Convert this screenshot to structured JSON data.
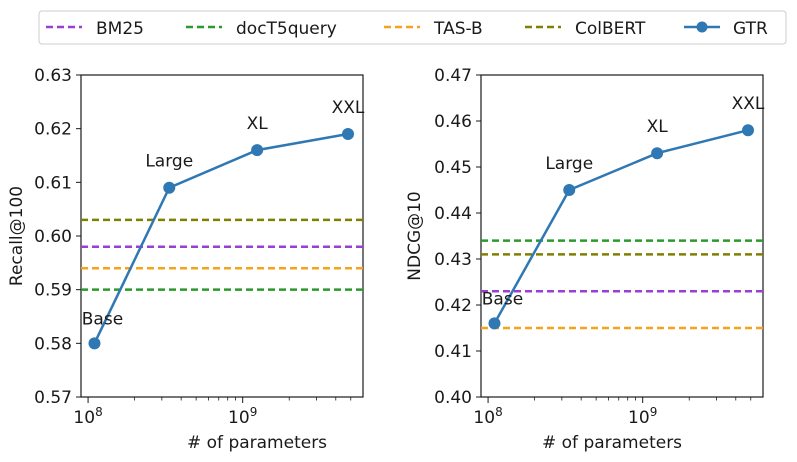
{
  "legend": {
    "placement": "top-center",
    "entries": [
      {
        "label": "BM25",
        "color": "#9a3fd6",
        "style": "dashed"
      },
      {
        "label": "docT5query",
        "color": "#2a9a2a",
        "style": "dashed"
      },
      {
        "label": "TAS-B",
        "color": "#f6a21a",
        "style": "dashed"
      },
      {
        "label": "ColBERT",
        "color": "#808000",
        "style": "dashed"
      },
      {
        "label": "GTR",
        "color": "#2f78b4",
        "style": "line-marker"
      }
    ]
  },
  "chart_data": [
    {
      "type": "line",
      "xlabel": "# of parameters",
      "ylabel": "Recall@100",
      "x_scale": "log",
      "xlim": [
        90000000,
        6000000000
      ],
      "x_ticks": [
        "10^8",
        "10^9"
      ],
      "ylim": [
        0.57,
        0.63
      ],
      "y_ticks": [
        "0.57",
        "0.58",
        "0.59",
        "0.60",
        "0.61",
        "0.62",
        "0.63"
      ],
      "grid": false,
      "series": [
        {
          "name": "GTR",
          "color": "#2f78b4",
          "x": [
            110000000,
            335000000,
            1240000000,
            4800000000
          ],
          "y": [
            0.58,
            0.609,
            0.616,
            0.619
          ],
          "point_labels": [
            "Base",
            "Large",
            "XL",
            "XXL"
          ]
        }
      ],
      "baselines": [
        {
          "name": "BM25",
          "color": "#9a3fd6",
          "y": 0.598
        },
        {
          "name": "docT5query",
          "color": "#2a9a2a",
          "y": 0.59
        },
        {
          "name": "TAS-B",
          "color": "#f6a21a",
          "y": 0.594
        },
        {
          "name": "ColBERT",
          "color": "#808000",
          "y": 0.603
        }
      ]
    },
    {
      "type": "line",
      "xlabel": "# of parameters",
      "ylabel": "NDCG@10",
      "x_scale": "log",
      "xlim": [
        90000000,
        6000000000
      ],
      "x_ticks": [
        "10^8",
        "10^9"
      ],
      "ylim": [
        0.4,
        0.47
      ],
      "y_ticks": [
        "0.40",
        "0.41",
        "0.42",
        "0.43",
        "0.44",
        "0.45",
        "0.46",
        "0.47"
      ],
      "grid": false,
      "series": [
        {
          "name": "GTR",
          "color": "#2f78b4",
          "x": [
            110000000,
            335000000,
            1240000000,
            4800000000
          ],
          "y": [
            0.416,
            0.445,
            0.453,
            0.458
          ],
          "point_labels": [
            "Base",
            "Large",
            "XL",
            "XXL"
          ]
        }
      ],
      "baselines": [
        {
          "name": "BM25",
          "color": "#9a3fd6",
          "y": 0.423
        },
        {
          "name": "docT5query",
          "color": "#2a9a2a",
          "y": 0.434
        },
        {
          "name": "TAS-B",
          "color": "#f6a21a",
          "y": 0.415
        },
        {
          "name": "ColBERT",
          "color": "#808000",
          "y": 0.431
        }
      ]
    }
  ]
}
